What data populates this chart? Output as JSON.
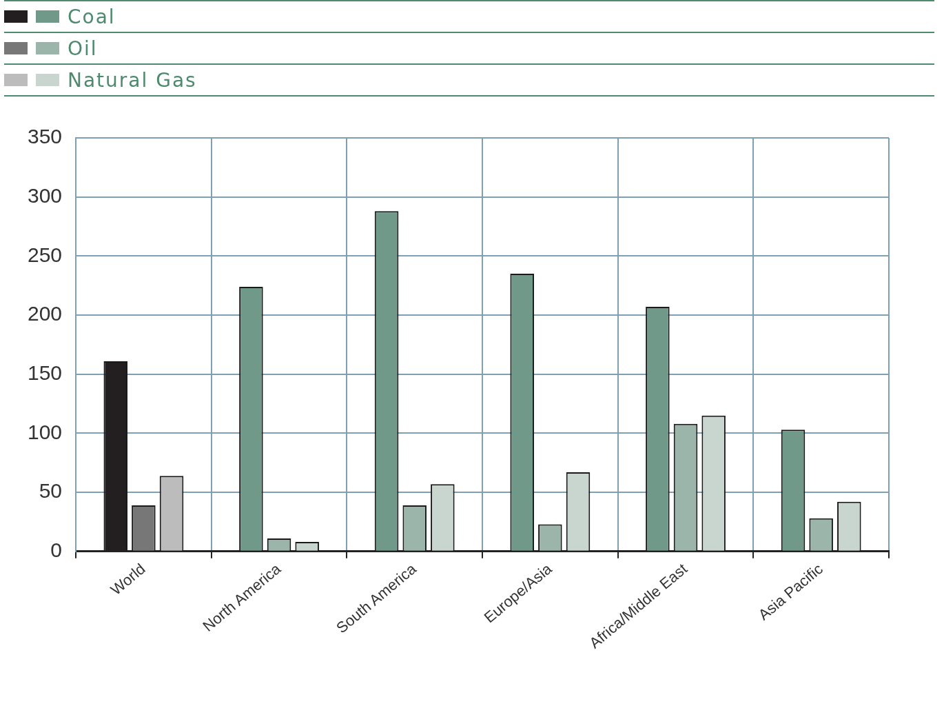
{
  "chart_data": {
    "type": "bar",
    "categories": [
      "World",
      "North America",
      "South America",
      "Europe/Asia",
      "Africa/Middle East",
      "Asia Pacific"
    ],
    "series": [
      {
        "name": "Coal",
        "colors": [
          "#231f20",
          "#71998a",
          "#71998a",
          "#71998a",
          "#71998a",
          "#71998a"
        ],
        "values": [
          161,
          224,
          288,
          235,
          207,
          103
        ]
      },
      {
        "name": "Oil",
        "colors": [
          "#777777",
          "#9bb5aa",
          "#9bb5aa",
          "#9bb5aa",
          "#9bb5aa",
          "#9bb5aa"
        ],
        "values": [
          39,
          11,
          39,
          23,
          108,
          28
        ]
      },
      {
        "name": "Natural Gas",
        "colors": [
          "#bcbcbc",
          "#c9d5cf",
          "#c9d5cf",
          "#c9d5cf",
          "#c9d5cf",
          "#c9d5cf"
        ],
        "values": [
          64,
          8,
          57,
          67,
          115,
          42
        ]
      }
    ],
    "ylim": [
      0,
      350
    ],
    "yticks": [
      0,
      50,
      100,
      150,
      200,
      250,
      300,
      350
    ],
    "grid": true,
    "legend": "top"
  }
}
